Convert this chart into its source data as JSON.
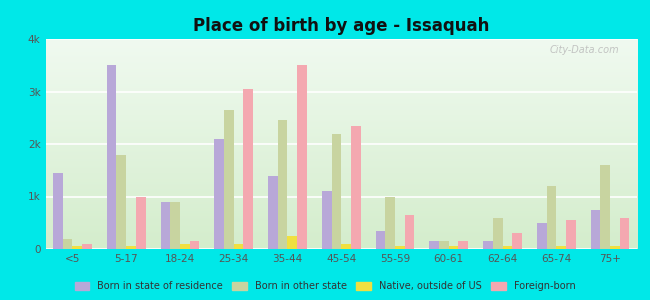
{
  "title": "Place of birth by age - Issaquah",
  "categories": [
    "<5",
    "5-17",
    "18-24",
    "25-34",
    "35-44",
    "45-54",
    "55-59",
    "60-61",
    "62-64",
    "65-74",
    "75+"
  ],
  "series": {
    "Born in state of residence": [
      1450,
      3500,
      900,
      2100,
      1400,
      1100,
      350,
      150,
      150,
      500,
      750
    ],
    "Born in other state": [
      200,
      1800,
      900,
      2650,
      2450,
      2200,
      1000,
      150,
      600,
      1200,
      1600
    ],
    "Native, outside of US": [
      50,
      50,
      100,
      100,
      250,
      100,
      50,
      50,
      50,
      50,
      50
    ],
    "Foreign-born": [
      100,
      1000,
      150,
      3050,
      3500,
      2350,
      650,
      150,
      300,
      550,
      600
    ]
  },
  "colors": {
    "Born in state of residence": "#b8a8d8",
    "Born in other state": "#c8d4a0",
    "Native, outside of US": "#f0e040",
    "Foreign-born": "#f4a8b0"
  },
  "ylim": [
    0,
    4000
  ],
  "yticks": [
    0,
    1000,
    2000,
    3000,
    4000
  ],
  "ytick_labels": [
    "0",
    "1k",
    "2k",
    "3k",
    "4k"
  ],
  "outer_background": "#00e8e8",
  "grid_color": "#ffffff",
  "watermark": "City-Data.com"
}
